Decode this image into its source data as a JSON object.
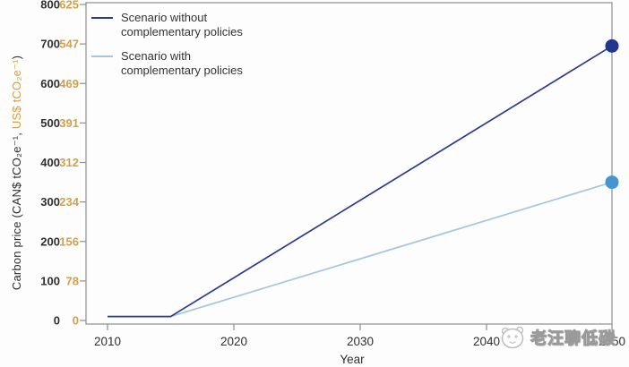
{
  "chart_data": {
    "type": "line",
    "title": "",
    "xlabel": "Year",
    "ylabel": "Carbon price (CAN$ tCO₂e⁻¹, US$ tCO₂e⁻¹)",
    "ylabel_parts": {
      "can": "Carbon price (CAN$ tCO₂e⁻¹, ",
      "usd": "US$ tCO₂e⁻¹",
      "close": ")"
    },
    "x_ticks": [
      2010,
      2020,
      2030,
      2040,
      2050
    ],
    "y_ticks_can": [
      800,
      700,
      600,
      500,
      400,
      300,
      200,
      100,
      0
    ],
    "y_ticks_usd": [
      625,
      547,
      469,
      391,
      312,
      234,
      156,
      78,
      0
    ],
    "ylim_can": [
      0,
      800
    ],
    "xlim": [
      2008.3,
      2050
    ],
    "grid": false,
    "legend_position": "top-left-inside",
    "series": [
      {
        "name": "Scenario without complementary policies",
        "label_lines": [
          "Scenario without",
          "complementary policies"
        ],
        "color": "#2c3b8a",
        "marker_color": "#22368f",
        "points": [
          [
            2010,
            10
          ],
          [
            2015,
            10
          ],
          [
            2050,
            695
          ]
        ],
        "end_marker": true
      },
      {
        "name": "Scenario with complementary policies",
        "label_lines": [
          "Scenario with",
          "complementary policies"
        ],
        "color": "#a6c5e3",
        "marker_color": "#4795cf",
        "points": [
          [
            2010,
            10
          ],
          [
            2015,
            10
          ],
          [
            2050,
            350
          ]
        ],
        "end_marker": true
      }
    ],
    "axis_color": "#8f8f8f",
    "tick_label_color": "#2f2f2f",
    "usd_tick_color": "#cfa14d"
  },
  "watermark": {
    "text": "老汪聊低碳",
    "logo": "panda-face-logo"
  }
}
